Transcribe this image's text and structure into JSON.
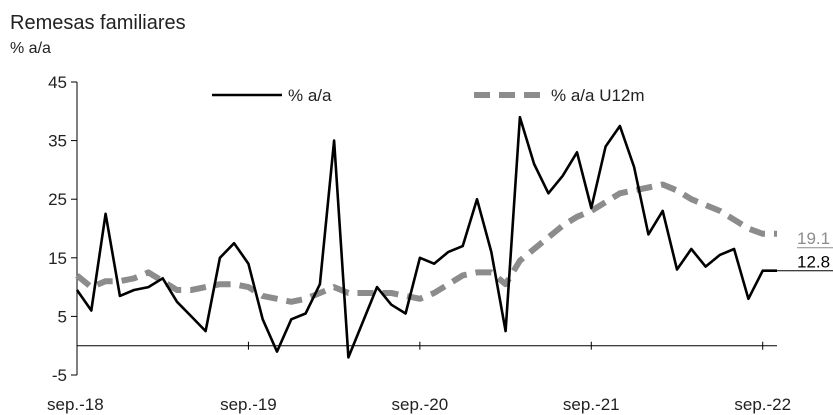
{
  "chart_data": {
    "type": "line",
    "title": "Remesas familiares",
    "ylabel": "% a/a",
    "ylim": [
      -5,
      45
    ],
    "yticks": [
      -5,
      5,
      15,
      25,
      35,
      45
    ],
    "xtick_labels": [
      "sep.-18",
      "sep.-19",
      "sep.-20",
      "sep.-21",
      "sep.-22"
    ],
    "xtick_indices": [
      0,
      12,
      24,
      36,
      48
    ],
    "legend_position": "top",
    "grid": false,
    "series": [
      {
        "name": "% a/a",
        "style": "solid",
        "color": "#000000",
        "values": [
          9.5,
          6.0,
          22.5,
          8.5,
          9.5,
          10.0,
          11.5,
          7.5,
          5.0,
          2.5,
          15.0,
          17.5,
          14.0,
          4.5,
          -1.0,
          4.5,
          5.5,
          10.5,
          35.0,
          -2.0,
          4.0,
          10.0,
          7.0,
          5.5,
          15.0,
          14.0,
          16.0,
          17.0,
          25.0,
          16.0,
          2.5,
          39.0,
          31.0,
          26.0,
          29.0,
          33.0,
          23.5,
          34.0,
          37.5,
          30.5,
          19.0,
          23.0,
          13.0,
          16.5,
          13.5,
          15.5,
          16.5,
          8.0,
          12.8,
          12.8
        ]
      },
      {
        "name": "% a/a U12m",
        "style": "dashed",
        "color": "#8c8c8c",
        "values": [
          12.0,
          10.0,
          11.0,
          11.0,
          11.5,
          12.5,
          11.0,
          9.5,
          9.5,
          10.0,
          10.5,
          10.5,
          10.0,
          8.5,
          8.0,
          7.5,
          8.0,
          9.0,
          10.0,
          9.0,
          9.0,
          9.0,
          9.0,
          8.5,
          8.0,
          9.0,
          10.5,
          12.0,
          12.5,
          12.5,
          10.5,
          14.5,
          16.5,
          18.5,
          20.5,
          22.0,
          23.0,
          24.5,
          26.0,
          26.5,
          27.0,
          27.5,
          26.5,
          25.0,
          24.0,
          23.0,
          21.5,
          20.0,
          19.1,
          19.1
        ]
      }
    ],
    "end_labels": [
      "12.8",
      "19.1"
    ]
  }
}
